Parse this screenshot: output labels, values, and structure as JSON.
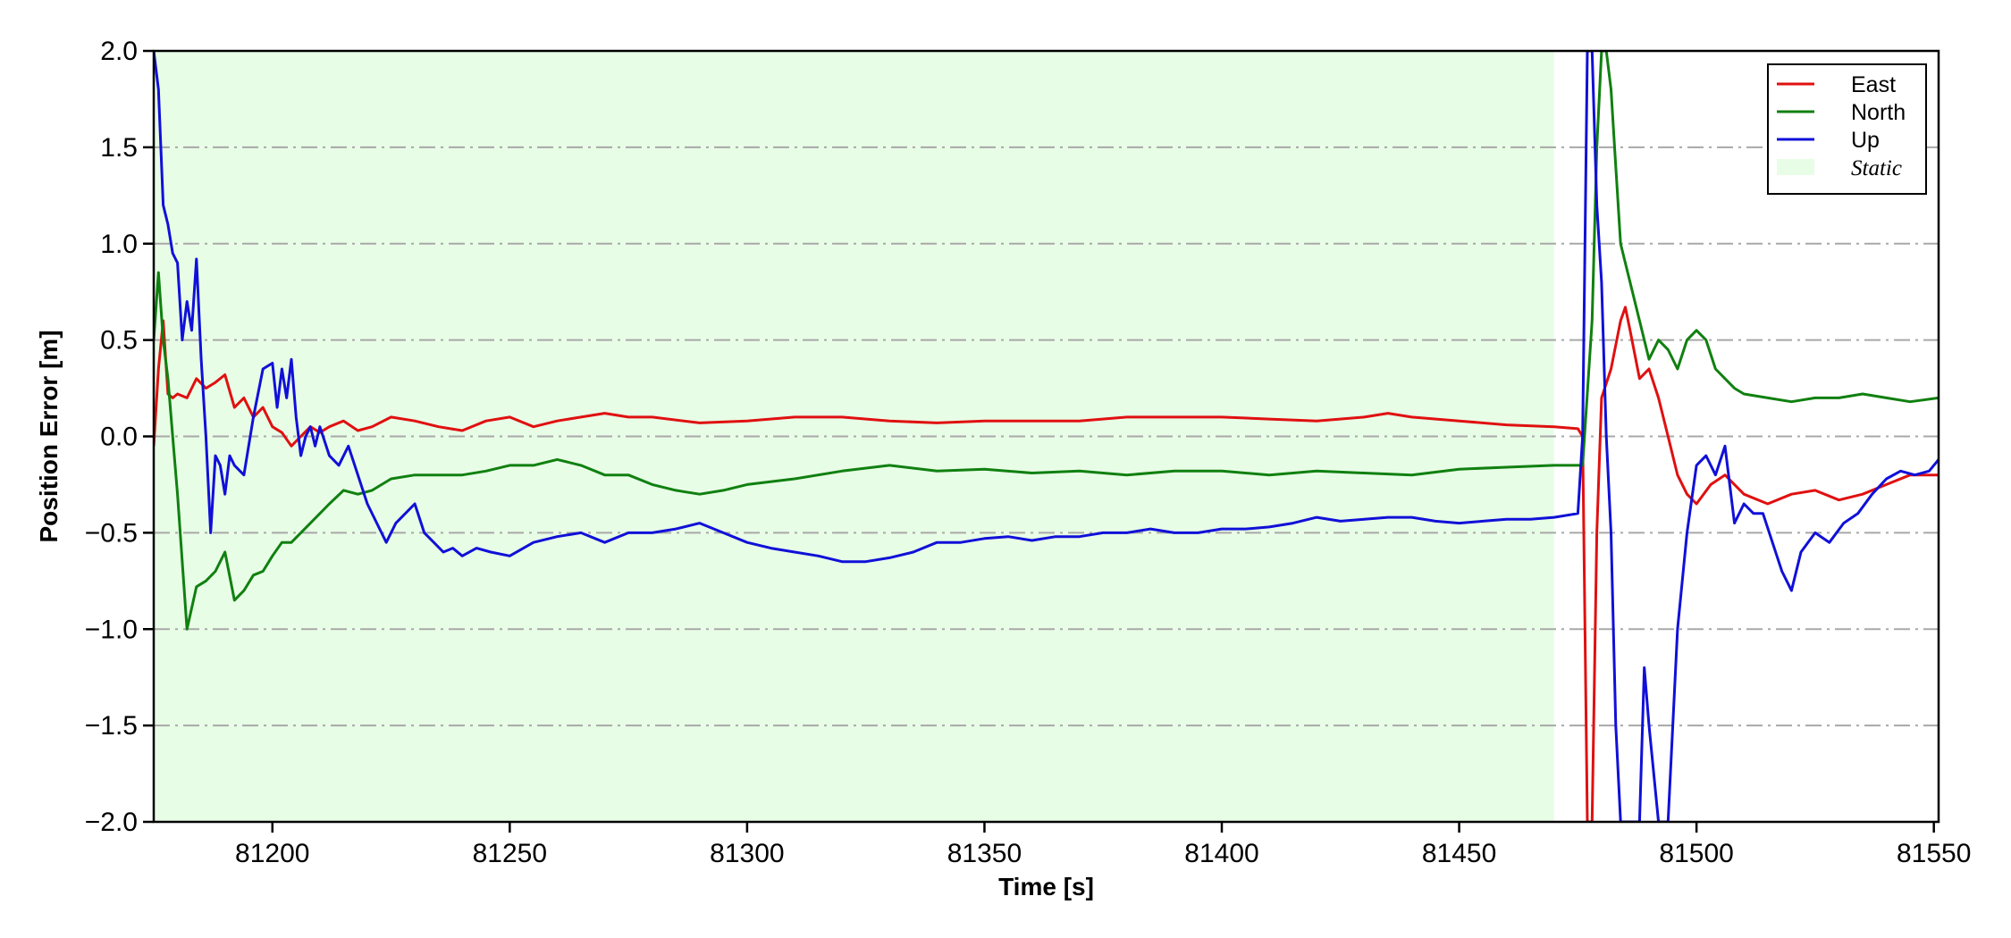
{
  "chart_data": {
    "type": "line",
    "xlabel": "Time [s]",
    "ylabel": "Position Error [m]",
    "xlim": [
      81175,
      81551
    ],
    "ylim": [
      -2.0,
      2.0
    ],
    "x_ticks": [
      81200,
      81250,
      81300,
      81350,
      81400,
      81450,
      81500,
      81550
    ],
    "x_tick_labels": [
      "81200",
      "81250",
      "81300",
      "81350",
      "81400",
      "81450",
      "81500",
      "81550"
    ],
    "y_ticks": [
      2.0,
      1.5,
      1.0,
      0.5,
      0.0,
      -0.5,
      -1.0,
      -1.5,
      -2.0
    ],
    "y_tick_labels": [
      "2.0",
      "1.5",
      "1.0",
      "0.5",
      "0.0",
      "−0.5",
      "−1.0",
      "−1.5",
      "−2.0"
    ],
    "grid": "horizontal dash-dot",
    "legend_position": "top-right",
    "shaded_region": {
      "name": "Static",
      "x_start": 81175,
      "x_end": 81470,
      "color": "#e8fde6"
    },
    "series": [
      {
        "name": "East",
        "color": "#e01010",
        "x": [
          81175,
          81176,
          81177,
          81178,
          81179,
          81180,
          81182,
          81184,
          81186,
          81188,
          81190,
          81192,
          81194,
          81196,
          81198,
          81200,
          81202,
          81204,
          81206,
          81208,
          81210,
          81212,
          81215,
          81218,
          81221,
          81225,
          81230,
          81235,
          81240,
          81245,
          81250,
          81255,
          81260,
          81265,
          81270,
          81275,
          81280,
          81290,
          81300,
          81310,
          81320,
          81330,
          81340,
          81350,
          81360,
          81370,
          81380,
          81390,
          81400,
          81410,
          81420,
          81430,
          81435,
          81440,
          81450,
          81460,
          81470,
          81475,
          81476,
          81477,
          81478,
          81479,
          81480,
          81482,
          81484,
          81485,
          81486,
          81488,
          81490,
          81492,
          81494,
          81496,
          81498,
          81500,
          81503,
          81506,
          81510,
          81515,
          81520,
          81525,
          81530,
          81535,
          81540,
          81545,
          81551
        ],
        "y": [
          -0.05,
          0.35,
          0.6,
          0.22,
          0.2,
          0.22,
          0.2,
          0.3,
          0.25,
          0.28,
          0.32,
          0.15,
          0.2,
          0.1,
          0.15,
          0.05,
          0.02,
          -0.05,
          0.0,
          0.05,
          0.02,
          0.05,
          0.08,
          0.03,
          0.05,
          0.1,
          0.08,
          0.05,
          0.03,
          0.08,
          0.1,
          0.05,
          0.08,
          0.1,
          0.12,
          0.1,
          0.1,
          0.07,
          0.08,
          0.1,
          0.1,
          0.08,
          0.07,
          0.08,
          0.08,
          0.08,
          0.1,
          0.1,
          0.1,
          0.09,
          0.08,
          0.1,
          0.12,
          0.1,
          0.08,
          0.06,
          0.05,
          0.04,
          0.0,
          -2.0,
          -2.0,
          -0.5,
          0.2,
          0.35,
          0.6,
          0.67,
          0.55,
          0.3,
          0.35,
          0.2,
          0.0,
          -0.2,
          -0.3,
          -0.35,
          -0.25,
          -0.2,
          -0.3,
          -0.35,
          -0.3,
          -0.28,
          -0.33,
          -0.3,
          -0.25,
          -0.2,
          -0.2
        ]
      },
      {
        "name": "North",
        "color": "#108010",
        "x": [
          81175,
          81176,
          81177,
          81178,
          81179,
          81180,
          81182,
          81184,
          81186,
          81188,
          81190,
          81192,
          81194,
          81196,
          81198,
          81200,
          81202,
          81204,
          81206,
          81208,
          81210,
          81212,
          81215,
          81218,
          81221,
          81225,
          81230,
          81235,
          81240,
          81245,
          81250,
          81255,
          81260,
          81265,
          81270,
          81275,
          81280,
          81285,
          81290,
          81295,
          81300,
          81310,
          81320,
          81330,
          81340,
          81350,
          81360,
          81370,
          81380,
          81390,
          81400,
          81410,
          81420,
          81430,
          81440,
          81450,
          81460,
          81470,
          81474,
          81476,
          81478,
          81479,
          81480,
          81481,
          81482,
          81483,
          81484,
          81486,
          81488,
          81490,
          81492,
          81494,
          81496,
          81498,
          81500,
          81502,
          81504,
          81506,
          81508,
          81510,
          81515,
          81520,
          81525,
          81530,
          81535,
          81540,
          81545,
          81551
        ],
        "y": [
          0.5,
          0.85,
          0.5,
          0.3,
          0.0,
          -0.3,
          -1.0,
          -0.78,
          -0.75,
          -0.7,
          -0.6,
          -0.85,
          -0.8,
          -0.72,
          -0.7,
          -0.62,
          -0.55,
          -0.55,
          -0.5,
          -0.45,
          -0.4,
          -0.35,
          -0.28,
          -0.3,
          -0.28,
          -0.22,
          -0.2,
          -0.2,
          -0.2,
          -0.18,
          -0.15,
          -0.15,
          -0.12,
          -0.15,
          -0.2,
          -0.2,
          -0.25,
          -0.28,
          -0.3,
          -0.28,
          -0.25,
          -0.22,
          -0.18,
          -0.15,
          -0.18,
          -0.17,
          -0.19,
          -0.18,
          -0.2,
          -0.18,
          -0.18,
          -0.2,
          -0.18,
          -0.19,
          -0.2,
          -0.17,
          -0.16,
          -0.15,
          -0.15,
          -0.15,
          0.6,
          1.5,
          2.0,
          2.0,
          1.8,
          1.4,
          1.0,
          0.8,
          0.6,
          0.4,
          0.5,
          0.45,
          0.35,
          0.5,
          0.55,
          0.5,
          0.35,
          0.3,
          0.25,
          0.22,
          0.2,
          0.18,
          0.2,
          0.2,
          0.22,
          0.2,
          0.18,
          0.2
        ]
      },
      {
        "name": "Up",
        "color": "#1010d8",
        "x": [
          81175,
          81176,
          81177,
          81178,
          81179,
          81180,
          81181,
          81182,
          81183,
          81184,
          81185,
          81186,
          81187,
          81188,
          81189,
          81190,
          81191,
          81192,
          81194,
          81196,
          81198,
          81200,
          81201,
          81202,
          81203,
          81204,
          81205,
          81206,
          81207,
          81208,
          81209,
          81210,
          81212,
          81214,
          81216,
          81218,
          81220,
          81222,
          81224,
          81226,
          81228,
          81230,
          81232,
          81234,
          81236,
          81238,
          81240,
          81243,
          81246,
          81250,
          81255,
          81260,
          81265,
          81270,
          81275,
          81280,
          81285,
          81290,
          81295,
          81300,
          81305,
          81310,
          81315,
          81320,
          81325,
          81330,
          81335,
          81340,
          81345,
          81350,
          81355,
          81360,
          81365,
          81370,
          81375,
          81380,
          81385,
          81390,
          81395,
          81400,
          81405,
          81410,
          81415,
          81420,
          81425,
          81430,
          81435,
          81440,
          81445,
          81450,
          81455,
          81460,
          81465,
          81470,
          81475,
          81476,
          81477,
          81478,
          81479,
          81480,
          81481,
          81482,
          81483,
          81484,
          81485,
          81486,
          81487,
          81488,
          81489,
          81490,
          81492,
          81494,
          81496,
          81498,
          81500,
          81502,
          81504,
          81506,
          81508,
          81510,
          81512,
          81514,
          81516,
          81518,
          81520,
          81522,
          81525,
          81528,
          81531,
          81534,
          81537,
          81540,
          81543,
          81546,
          81549,
          81551
        ],
        "y": [
          2.0,
          1.8,
          1.2,
          1.1,
          0.95,
          0.9,
          0.5,
          0.7,
          0.55,
          0.92,
          0.4,
          0.0,
          -0.5,
          -0.1,
          -0.15,
          -0.3,
          -0.1,
          -0.15,
          -0.2,
          0.1,
          0.35,
          0.38,
          0.15,
          0.35,
          0.2,
          0.4,
          0.1,
          -0.1,
          0.0,
          0.05,
          -0.05,
          0.05,
          -0.1,
          -0.15,
          -0.05,
          -0.2,
          -0.35,
          -0.45,
          -0.55,
          -0.45,
          -0.4,
          -0.35,
          -0.5,
          -0.55,
          -0.6,
          -0.58,
          -0.62,
          -0.58,
          -0.6,
          -0.62,
          -0.55,
          -0.52,
          -0.5,
          -0.55,
          -0.5,
          -0.5,
          -0.48,
          -0.45,
          -0.5,
          -0.55,
          -0.58,
          -0.6,
          -0.62,
          -0.65,
          -0.65,
          -0.63,
          -0.6,
          -0.55,
          -0.55,
          -0.53,
          -0.52,
          -0.54,
          -0.52,
          -0.52,
          -0.5,
          -0.5,
          -0.48,
          -0.5,
          -0.5,
          -0.48,
          -0.48,
          -0.47,
          -0.45,
          -0.42,
          -0.44,
          -0.43,
          -0.42,
          -0.42,
          -0.44,
          -0.45,
          -0.44,
          -0.43,
          -0.43,
          -0.42,
          -0.4,
          0.0,
          2.0,
          2.0,
          1.2,
          0.8,
          0.0,
          -0.5,
          -1.5,
          -2.0,
          -2.0,
          -2.0,
          -2.0,
          -2.0,
          -1.2,
          -1.5,
          -2.0,
          -2.0,
          -1.0,
          -0.5,
          -0.15,
          -0.1,
          -0.2,
          -0.05,
          -0.45,
          -0.35,
          -0.4,
          -0.4,
          -0.55,
          -0.7,
          -0.8,
          -0.6,
          -0.5,
          -0.55,
          -0.45,
          -0.4,
          -0.3,
          -0.22,
          -0.18,
          -0.2,
          -0.18,
          -0.12
        ]
      }
    ]
  }
}
